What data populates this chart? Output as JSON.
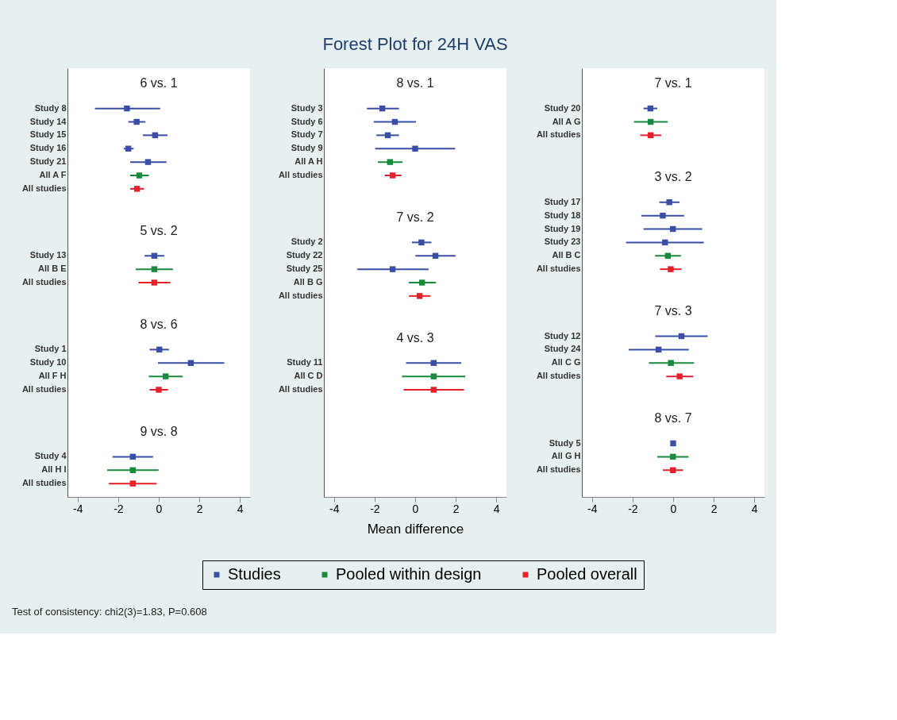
{
  "chart_data": [
    {
      "type": "scatter",
      "orientation": "horizontal",
      "marker": "square",
      "xlim": [
        -4.5,
        4.5
      ],
      "xticks": [
        -4,
        -2,
        0,
        2,
        4
      ],
      "legend": "bottom",
      "categories": [
        null,
        null,
        "Study 8",
        "Study 14",
        "Study 15",
        "Study 16",
        "Study 21",
        "All A F",
        "All studies",
        null,
        null,
        null,
        null,
        "Study 13",
        "All B E",
        "All studies",
        null,
        null,
        null,
        null,
        "Study 1",
        "Study 10",
        "All F H",
        "All studies",
        null,
        null,
        null,
        null,
        "Study 4",
        "All H I",
        "All studies"
      ],
      "annotations": [
        "6 vs. 1",
        "5 vs. 2",
        "8 vs. 6",
        "9 vs. 8",
        "Test of consistency: chi2(3)=1.83, P=0.608"
      ],
      "series": [
        {
          "name": "Studies",
          "color": "#3a4ea6",
          "values": [
            null,
            null,
            -1.57,
            -1.09,
            -0.18,
            -1.5,
            -0.53,
            null,
            null,
            null,
            null,
            null,
            null,
            -0.22,
            null,
            null,
            null,
            null,
            null,
            null,
            0.03,
            1.58,
            null,
            null,
            null,
            null,
            null,
            null,
            -1.28,
            null,
            null
          ],
          "errors": [
            null,
            null,
            [
              -3.15,
              0.07
            ],
            [
              -1.5,
              -0.66
            ],
            [
              -0.78,
              0.43
            ],
            [
              -1.73,
              -1.24
            ],
            [
              -1.41,
              0.38
            ],
            null,
            null,
            null,
            null,
            null,
            null,
            [
              -0.7,
              0.27
            ],
            null,
            null,
            null,
            null,
            null,
            null,
            [
              -0.45,
              0.5
            ],
            [
              -0.04,
              3.23
            ],
            null,
            null,
            null,
            null,
            null,
            null,
            [
              -2.28,
              -0.28
            ],
            null,
            null
          ]
        },
        {
          "name": "Pooled within design",
          "color": "#1a8a3c",
          "values": [
            null,
            null,
            null,
            null,
            null,
            null,
            null,
            -0.96,
            null,
            null,
            null,
            null,
            null,
            null,
            -0.22,
            null,
            null,
            null,
            null,
            null,
            null,
            null,
            0.34,
            null,
            null,
            null,
            null,
            null,
            null,
            -1.28,
            null
          ],
          "errors": [
            null,
            null,
            null,
            null,
            null,
            null,
            null,
            [
              -1.41,
              -0.49
            ],
            null,
            null,
            null,
            null,
            null,
            null,
            [
              -1.14,
              0.7
            ],
            null,
            null,
            null,
            null,
            null,
            null,
            null,
            [
              -0.49,
              1.18
            ],
            null,
            null,
            null,
            null,
            null,
            null,
            [
              -2.54,
              -0.01
            ],
            null
          ]
        },
        {
          "name": "Pooled overall",
          "color": "#e8202a",
          "values": [
            null,
            null,
            null,
            null,
            null,
            null,
            null,
            null,
            -1.07,
            null,
            null,
            null,
            null,
            null,
            null,
            -0.22,
            null,
            null,
            null,
            null,
            null,
            null,
            null,
            0.0,
            null,
            null,
            null,
            null,
            null,
            null,
            -1.28
          ],
          "errors": [
            null,
            null,
            null,
            null,
            null,
            null,
            null,
            null,
            [
              -1.41,
              -0.73
            ],
            null,
            null,
            null,
            null,
            null,
            null,
            [
              -1.0,
              0.57
            ],
            null,
            null,
            null,
            null,
            null,
            null,
            null,
            [
              -0.45,
              0.46
            ],
            null,
            null,
            null,
            null,
            null,
            null,
            [
              -2.46,
              -0.11
            ]
          ]
        }
      ]
    },
    {
      "type": "scatter",
      "orientation": "horizontal",
      "marker": "square",
      "xlim": [
        -4.5,
        4.5
      ],
      "xticks": [
        -4,
        -2,
        0,
        2,
        4
      ],
      "title": "Forest Plot for 24H VAS",
      "xlabel": "Mean difference",
      "legend": "bottom",
      "categories": [
        null,
        null,
        "Study 3",
        "Study 6",
        "Study 7",
        "Study 9",
        "All A H",
        "All studies",
        null,
        null,
        null,
        null,
        "Study 2",
        "Study 22",
        "Study 25",
        "All B G",
        "All studies",
        null,
        null,
        null,
        null,
        "Study 11",
        "All C D",
        "All studies",
        null,
        null,
        null,
        null,
        null,
        null,
        null
      ],
      "annotations": [
        "8 vs. 1",
        "7 vs. 2",
        "4 vs. 3"
      ],
      "series": [
        {
          "name": "Studies",
          "color": "#3a4ea6",
          "values": [
            null,
            null,
            -1.62,
            -1.0,
            -1.35,
            0.0,
            null,
            null,
            null,
            null,
            null,
            null,
            0.31,
            1.0,
            -1.11,
            null,
            null,
            null,
            null,
            null,
            null,
            0.91,
            null,
            null,
            null,
            null,
            null,
            null,
            null,
            null,
            null
          ],
          "errors": [
            null,
            null,
            [
              -2.38,
              -0.8
            ],
            [
              -2.04,
              0.04
            ],
            [
              -1.91,
              -0.8
            ],
            [
              -1.97,
              1.97
            ],
            null,
            null,
            null,
            null,
            null,
            null,
            [
              -0.16,
              0.8
            ],
            [
              0.01,
              1.99
            ],
            [
              -2.85,
              0.66
            ],
            null,
            null,
            null,
            null,
            null,
            null,
            [
              -0.45,
              2.27
            ],
            null,
            null,
            null,
            null,
            null,
            null,
            null,
            null,
            null
          ]
        },
        {
          "name": "Pooled within design",
          "color": "#1a8a3c",
          "values": [
            null,
            null,
            null,
            null,
            null,
            null,
            -1.24,
            null,
            null,
            null,
            null,
            null,
            null,
            null,
            null,
            0.34,
            null,
            null,
            null,
            null,
            null,
            null,
            0.91,
            null,
            null,
            null,
            null,
            null,
            null,
            null,
            null
          ],
          "errors": [
            null,
            null,
            null,
            null,
            null,
            null,
            [
              -1.84,
              -0.62
            ],
            null,
            null,
            null,
            null,
            null,
            null,
            null,
            null,
            [
              -0.32,
              1.03
            ],
            null,
            null,
            null,
            null,
            null,
            null,
            [
              -0.65,
              2.47
            ],
            null,
            null,
            null,
            null,
            null,
            null,
            null,
            null
          ]
        },
        {
          "name": "Pooled overall",
          "color": "#e8202a",
          "values": [
            null,
            null,
            null,
            null,
            null,
            null,
            null,
            -1.11,
            null,
            null,
            null,
            null,
            null,
            null,
            null,
            null,
            0.22,
            null,
            null,
            null,
            null,
            null,
            null,
            0.91,
            null,
            null,
            null,
            null,
            null,
            null,
            null
          ],
          "errors": [
            null,
            null,
            null,
            null,
            null,
            null,
            null,
            [
              -1.5,
              -0.68
            ],
            null,
            null,
            null,
            null,
            null,
            null,
            null,
            null,
            [
              -0.31,
              0.76
            ],
            null,
            null,
            null,
            null,
            null,
            null,
            [
              -0.57,
              2.41
            ],
            null,
            null,
            null,
            null,
            null,
            null,
            null
          ]
        }
      ]
    },
    {
      "type": "scatter",
      "orientation": "horizontal",
      "marker": "square",
      "xlim": [
        -4.5,
        4.5
      ],
      "xticks": [
        -4,
        -2,
        0,
        2,
        4
      ],
      "legend": "bottom",
      "categories": [
        null,
        null,
        "Study 20",
        "All A G",
        "All studies",
        null,
        null,
        null,
        null,
        "Study 17",
        "Study 18",
        "Study 19",
        "Study 23",
        "All B C",
        "All studies",
        null,
        null,
        null,
        null,
        "Study 12",
        "Study 24",
        "All C G",
        "All studies",
        null,
        null,
        null,
        null,
        "Study 5",
        "All G H",
        "All studies",
        null
      ],
      "annotations": [
        "7 vs. 1",
        "3 vs. 2",
        "7 vs. 3",
        "8 vs. 7"
      ],
      "series": [
        {
          "name": "Studies",
          "color": "#3a4ea6",
          "values": [
            null,
            null,
            -1.12,
            null,
            null,
            null,
            null,
            null,
            null,
            -0.19,
            -0.51,
            -0.01,
            -0.4,
            null,
            null,
            null,
            null,
            null,
            null,
            0.41,
            -0.72,
            null,
            null,
            null,
            null,
            null,
            null,
            0.0,
            null,
            null,
            null
          ],
          "errors": [
            null,
            null,
            [
              -1.46,
              -0.78
            ],
            null,
            null,
            null,
            null,
            null,
            null,
            [
              -0.68,
              0.31
            ],
            [
              -1.57,
              0.54
            ],
            [
              -1.46,
              1.43
            ],
            [
              -2.32,
              1.51
            ],
            null,
            null,
            null,
            null,
            null,
            null,
            [
              -0.88,
              1.7
            ],
            [
              -2.19,
              0.77
            ],
            null,
            null,
            null,
            null,
            null,
            null,
            null,
            null,
            null,
            null
          ]
        },
        {
          "name": "Pooled within design",
          "color": "#1a8a3c",
          "values": [
            null,
            null,
            null,
            -1.11,
            null,
            null,
            null,
            null,
            null,
            null,
            null,
            null,
            null,
            -0.26,
            null,
            null,
            null,
            null,
            null,
            null,
            null,
            -0.11,
            null,
            null,
            null,
            null,
            null,
            null,
            -0.01,
            null,
            null
          ],
          "errors": [
            null,
            null,
            null,
            [
              -1.93,
              -0.27
            ],
            null,
            null,
            null,
            null,
            null,
            null,
            null,
            null,
            null,
            [
              -0.89,
              0.38
            ],
            null,
            null,
            null,
            null,
            null,
            null,
            null,
            [
              -1.2,
              1.03
            ],
            null,
            null,
            null,
            null,
            null,
            null,
            [
              -0.78,
              0.76
            ],
            null,
            null
          ]
        },
        {
          "name": "Pooled overall",
          "color": "#e8202a",
          "values": [
            null,
            null,
            null,
            null,
            -1.11,
            null,
            null,
            null,
            null,
            null,
            null,
            null,
            null,
            null,
            -0.12,
            null,
            null,
            null,
            null,
            null,
            null,
            null,
            0.32,
            null,
            null,
            null,
            null,
            null,
            null,
            -0.01,
            null
          ],
          "errors": [
            null,
            null,
            null,
            null,
            [
              -1.62,
              -0.59
            ],
            null,
            null,
            null,
            null,
            null,
            null,
            null,
            null,
            null,
            [
              -0.65,
              0.41
            ],
            null,
            null,
            null,
            null,
            null,
            null,
            null,
            [
              -0.34,
              0.99
            ],
            null,
            null,
            null,
            null,
            null,
            null,
            [
              -0.51,
              0.49
            ],
            null
          ]
        }
      ]
    }
  ]
}
